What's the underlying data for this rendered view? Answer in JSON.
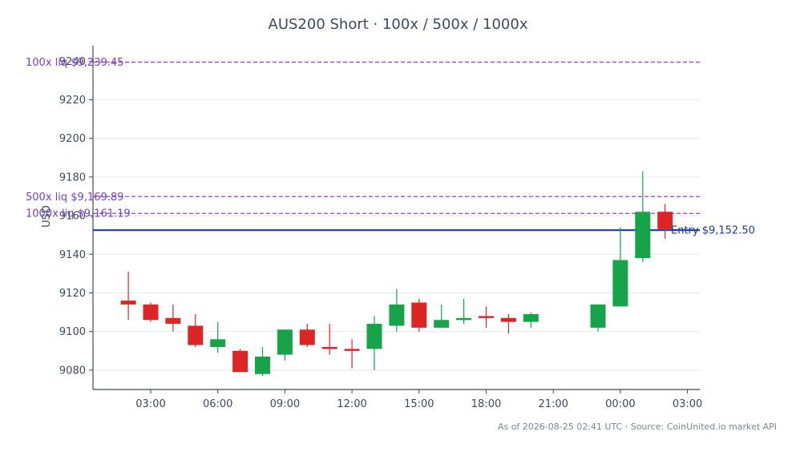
{
  "chart_data": {
    "type": "candlestick",
    "title": "AUS200 Short · 100x / 500x / 1000x",
    "ylabel": "USD",
    "xlabel": "",
    "ylim": [
      9070,
      9248
    ],
    "y_ticks": [
      9080,
      9100,
      9120,
      9140,
      9160,
      9180,
      9200,
      9220,
      9240
    ],
    "x_ticks": [
      "03:00",
      "06:00",
      "09:00",
      "12:00",
      "15:00",
      "18:00",
      "21:00",
      "00:00",
      "03:00"
    ],
    "candles": [
      {
        "time": "02:00",
        "open": 9116,
        "high": 9131,
        "low": 9106,
        "close": 9114
      },
      {
        "time": "03:00",
        "open": 9114,
        "high": 9115,
        "low": 9105,
        "close": 9106
      },
      {
        "time": "04:00",
        "open": 9107,
        "high": 9114,
        "low": 9100,
        "close": 9104
      },
      {
        "time": "05:00",
        "open": 9103,
        "high": 9109,
        "low": 9092,
        "close": 9093
      },
      {
        "time": "06:00",
        "open": 9092,
        "high": 9105,
        "low": 9089,
        "close": 9096
      },
      {
        "time": "07:00",
        "open": 9090,
        "high": 9091,
        "low": 9079,
        "close": 9079
      },
      {
        "time": "08:00",
        "open": 9078,
        "high": 9092,
        "low": 9077,
        "close": 9087
      },
      {
        "time": "09:00",
        "open": 9088,
        "high": 9101,
        "low": 9085,
        "close": 9101
      },
      {
        "time": "10:00",
        "open": 9101,
        "high": 9104,
        "low": 9092,
        "close": 9093
      },
      {
        "time": "11:00",
        "open": 9092,
        "high": 9104,
        "low": 9088,
        "close": 9091
      },
      {
        "time": "12:00",
        "open": 9091,
        "high": 9096,
        "low": 9081,
        "close": 9090
      },
      {
        "time": "13:00",
        "open": 9091,
        "high": 9108,
        "low": 9080,
        "close": 9104
      },
      {
        "time": "14:00",
        "open": 9103,
        "high": 9122,
        "low": 9100,
        "close": 9114
      },
      {
        "time": "15:00",
        "open": 9115,
        "high": 9117,
        "low": 9100,
        "close": 9102
      },
      {
        "time": "16:00",
        "open": 9102,
        "high": 9114,
        "low": 9102,
        "close": 9106
      },
      {
        "time": "17:00",
        "open": 9106,
        "high": 9117,
        "low": 9104,
        "close": 9107
      },
      {
        "time": "18:00",
        "open": 9108,
        "high": 9113,
        "low": 9102,
        "close": 9107
      },
      {
        "time": "19:00",
        "open": 9107,
        "high": 9109,
        "low": 9099,
        "close": 9105
      },
      {
        "time": "20:00",
        "open": 9105,
        "high": 9110,
        "low": 9102,
        "close": 9109
      },
      {
        "time": "23:00",
        "open": 9102,
        "high": 9114,
        "low": 9100,
        "close": 9114
      },
      {
        "time": "00:00",
        "open": 9113,
        "high": 9154,
        "low": 9113,
        "close": 9137
      },
      {
        "time": "01:00",
        "open": 9138,
        "high": 9183,
        "low": 9136,
        "close": 9162
      },
      {
        "time": "02:00",
        "open": 9162,
        "high": 9166,
        "low": 9148,
        "close": 9153
      }
    ],
    "levels": [
      {
        "label": "100x liq $9,239.45",
        "value": 9239.45,
        "color": "#8e44ec",
        "style": "dashed"
      },
      {
        "label": "500x liq $9,169.89",
        "value": 9169.89,
        "color": "#8e44ec",
        "style": "dashed"
      },
      {
        "label": "1000x liq $9,161.19",
        "value": 9161.19,
        "color": "#8e44ec",
        "style": "dashed"
      },
      {
        "label": "Entry $9,152.50",
        "value": 9152.5,
        "color": "#1f3c99",
        "style": "solid"
      }
    ],
    "colors": {
      "up": "#16a34a",
      "down": "#dc2626",
      "axis": "#3d4a5c",
      "grid": "#e6e8eb",
      "liq_label": "#7b3fc4"
    },
    "grid": true
  },
  "footer": "As of 2026-08-25 02:41 UTC · Source: CoinUnited.io market API"
}
